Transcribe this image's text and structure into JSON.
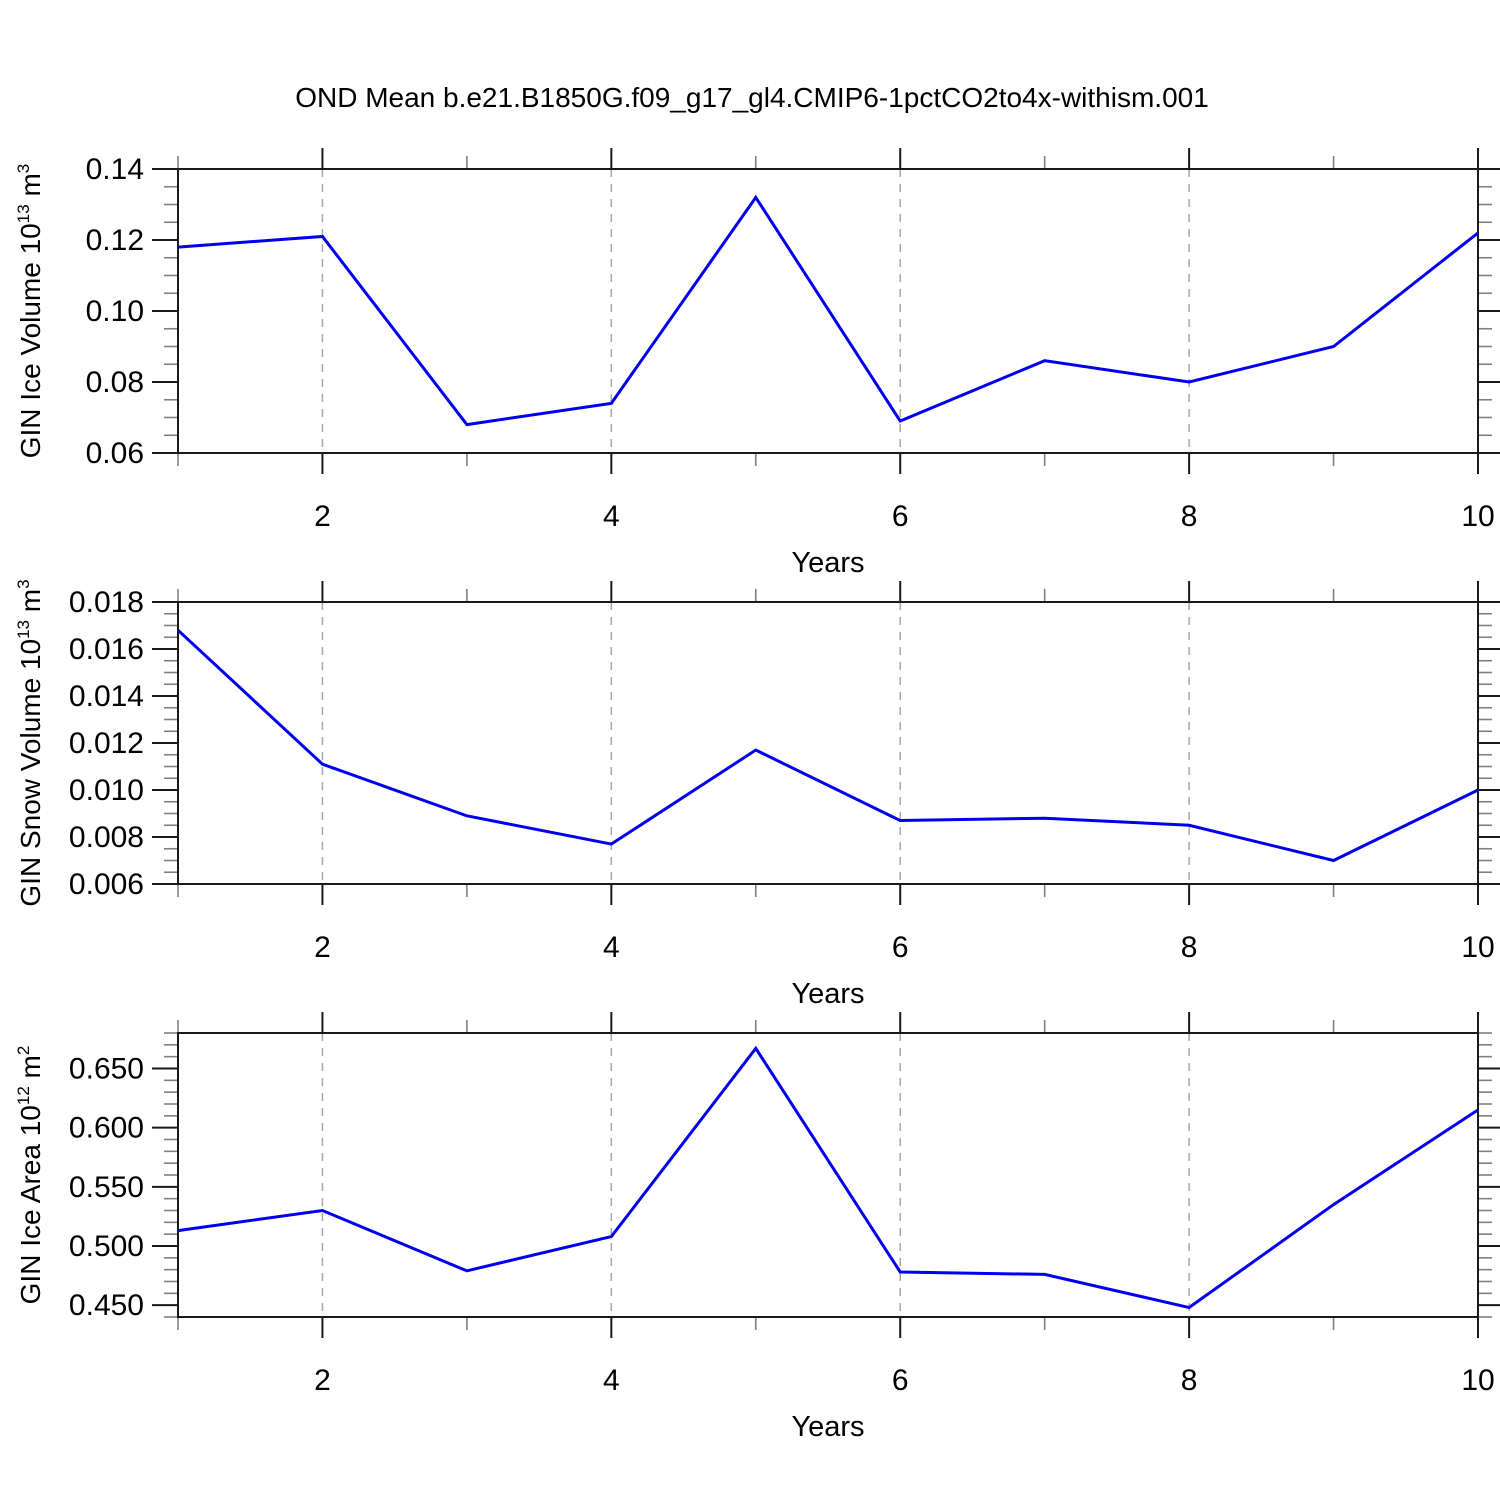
{
  "title": "OND Mean b.e21.B1850G.f09_g17_gl4.CMIP6-1pctCO2to4x-withism.001",
  "style": {
    "line_color": "#0000ee",
    "axis_color": "#1a1a1a",
    "minor_tick_color": "#808080",
    "grid_color": "#a8a8a8"
  },
  "chart_data": [
    {
      "type": "line",
      "name": "gin-ice-volume",
      "ylabel_plain": "GIN Ice Volume 10^13 m^3",
      "ylabel_parts": [
        {
          "text": "GIN Ice Volume 10"
        },
        {
          "text": "13",
          "sup": true
        },
        {
          "text": " m"
        },
        {
          "text": "3",
          "sup": true
        }
      ],
      "xlabel": "Years",
      "x": [
        1,
        2,
        3,
        4,
        5,
        6,
        7,
        8,
        9,
        10
      ],
      "values": [
        0.118,
        0.121,
        0.068,
        0.074,
        0.132,
        0.069,
        0.086,
        0.08,
        0.09,
        0.122
      ],
      "xlim": [
        1,
        10
      ],
      "ylim": [
        0.06,
        0.14
      ],
      "x_major_ticks": [
        2,
        4,
        6,
        8,
        10
      ],
      "x_minor_ticks": [
        1,
        3,
        5,
        7,
        9
      ],
      "x_tick_labels": [
        "2",
        "4",
        "6",
        "8",
        "10"
      ],
      "grid_x": [
        2,
        4,
        6,
        8
      ],
      "grid_style": "dashed-vertical",
      "yticks": [
        {
          "value": 0.06,
          "label": "0.06"
        },
        {
          "value": 0.08,
          "label": "0.08"
        },
        {
          "value": 0.1,
          "label": "0.10"
        },
        {
          "value": 0.12,
          "label": "0.12"
        },
        {
          "value": 0.14,
          "label": "0.14"
        }
      ],
      "y_minor_step": 0.005
    },
    {
      "type": "line",
      "name": "gin-snow-volume",
      "ylabel_plain": "GIN Snow Volume 10^13 m^3",
      "ylabel_parts": [
        {
          "text": "GIN Snow Volume 10"
        },
        {
          "text": "13",
          "sup": true
        },
        {
          "text": " m"
        },
        {
          "text": "3",
          "sup": true
        }
      ],
      "xlabel": "Years",
      "x": [
        1,
        2,
        3,
        4,
        5,
        6,
        7,
        8,
        9,
        10
      ],
      "values": [
        0.0168,
        0.0111,
        0.0089,
        0.0077,
        0.0117,
        0.0087,
        0.0088,
        0.0085,
        0.007,
        0.01
      ],
      "xlim": [
        1,
        10
      ],
      "ylim": [
        0.006,
        0.018
      ],
      "x_major_ticks": [
        2,
        4,
        6,
        8,
        10
      ],
      "x_minor_ticks": [
        1,
        3,
        5,
        7,
        9
      ],
      "x_tick_labels": [
        "2",
        "4",
        "6",
        "8",
        "10"
      ],
      "grid_x": [
        2,
        4,
        6,
        8
      ],
      "grid_style": "dashed-vertical",
      "yticks": [
        {
          "value": 0.006,
          "label": "0.006"
        },
        {
          "value": 0.008,
          "label": "0.008"
        },
        {
          "value": 0.01,
          "label": "0.010"
        },
        {
          "value": 0.012,
          "label": "0.012"
        },
        {
          "value": 0.014,
          "label": "0.014"
        },
        {
          "value": 0.016,
          "label": "0.016"
        },
        {
          "value": 0.018,
          "label": "0.018"
        }
      ],
      "y_minor_step": 0.0005
    },
    {
      "type": "line",
      "name": "gin-ice-area",
      "ylabel_plain": "GIN Ice Area 10^12 m^2",
      "ylabel_parts": [
        {
          "text": "GIN Ice Area 10"
        },
        {
          "text": "12",
          "sup": true
        },
        {
          "text": " m"
        },
        {
          "text": "2",
          "sup": true
        }
      ],
      "xlabel": "Years",
      "x": [
        1,
        2,
        3,
        4,
        5,
        6,
        7,
        8,
        9,
        10
      ],
      "values": [
        0.513,
        0.53,
        0.479,
        0.508,
        0.667,
        0.478,
        0.476,
        0.448,
        0.535,
        0.615
      ],
      "xlim": [
        1,
        10
      ],
      "ylim": [
        0.44,
        0.68
      ],
      "x_major_ticks": [
        2,
        4,
        6,
        8,
        10
      ],
      "x_minor_ticks": [
        1,
        3,
        5,
        7,
        9
      ],
      "x_tick_labels": [
        "2",
        "4",
        "6",
        "8",
        "10"
      ],
      "grid_x": [
        2,
        4,
        6,
        8
      ],
      "grid_style": "dashed-vertical",
      "yticks": [
        {
          "value": 0.45,
          "label": "0.450"
        },
        {
          "value": 0.5,
          "label": "0.500"
        },
        {
          "value": 0.55,
          "label": "0.550"
        },
        {
          "value": 0.6,
          "label": "0.600"
        },
        {
          "value": 0.65,
          "label": "0.650"
        }
      ],
      "y_minor_step": 0.01
    }
  ]
}
